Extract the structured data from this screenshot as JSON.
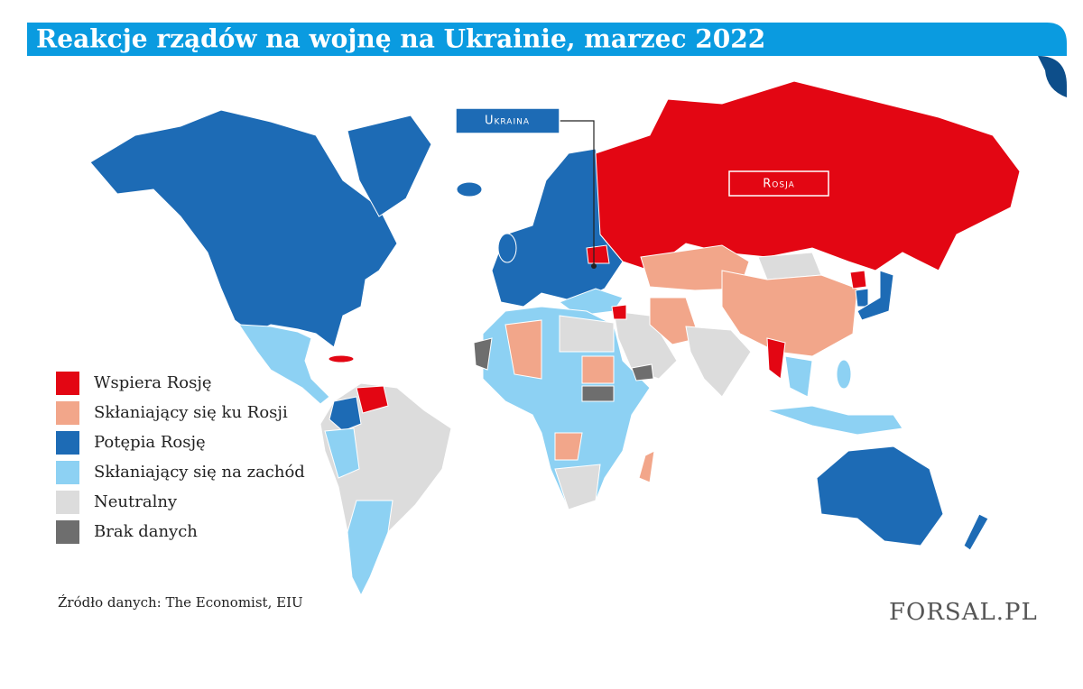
{
  "title": "Reakcje rządów na wojnę na Ukrainie, marzec 2022",
  "legend": [
    {
      "label": "Wspiera Rosję",
      "color": "#e30613"
    },
    {
      "label": "Skłaniający się ku Rosji",
      "color": "#f2a68a"
    },
    {
      "label": "Potępia Rosję",
      "color": "#1d6bb5"
    },
    {
      "label": "Skłaniający się na zachód",
      "color": "#8dd1f3"
    },
    {
      "label": "Neutralny",
      "color": "#dcdcdc"
    },
    {
      "label": "Brak danych",
      "color": "#6e6e6e"
    }
  ],
  "callouts": [
    {
      "label": "Ukraina"
    },
    {
      "label": "Rosja"
    }
  ],
  "source": "Źródło danych: The Economist, EIU",
  "logo": "FORSAL.PL"
}
